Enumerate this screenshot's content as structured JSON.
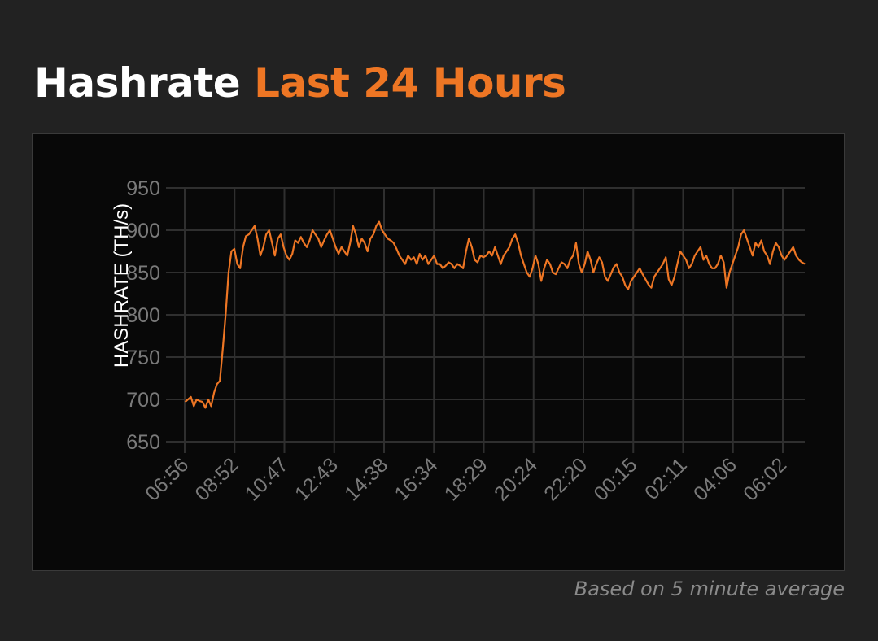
{
  "title": {
    "main": "Hashrate",
    "highlight": "Last 24 Hours"
  },
  "colors": {
    "accent": "#ee7624",
    "background": "#222222",
    "panel": "#080808",
    "grid": "#2f2f2f",
    "tick": "#7a7a7a"
  },
  "footnote": "Based on 5 minute average",
  "chart_data": {
    "type": "line",
    "ylabel": "HASHRATE (TH/s)",
    "xlabel": "",
    "ylim": [
      650,
      950
    ],
    "yticks": [
      950,
      900,
      850,
      800,
      750,
      700,
      650
    ],
    "grid": true,
    "legend": "none",
    "x_tick_labels": [
      "06:56",
      "08:52",
      "10:47",
      "12:43",
      "14:38",
      "16:34",
      "18:29",
      "20:24",
      "22:20",
      "00:15",
      "02:11",
      "04:06",
      "06:02"
    ],
    "series": [
      {
        "color": "#ee7624",
        "values": [
          697,
          700,
          703,
          692,
          700,
          698,
          697,
          690,
          700,
          692,
          708,
          718,
          722,
          760,
          800,
          850,
          875,
          878,
          860,
          855,
          880,
          893,
          895,
          900,
          905,
          890,
          870,
          880,
          895,
          900,
          885,
          870,
          890,
          895,
          880,
          870,
          865,
          872,
          888,
          885,
          892,
          885,
          880,
          888,
          900,
          895,
          890,
          880,
          888,
          895,
          900,
          890,
          880,
          872,
          880,
          875,
          870,
          885,
          905,
          895,
          880,
          890,
          885,
          875,
          890,
          895,
          905,
          910,
          900,
          895,
          890,
          888,
          885,
          878,
          870,
          865,
          860,
          870,
          865,
          868,
          860,
          872,
          865,
          870,
          860,
          865,
          870,
          860,
          860,
          855,
          858,
          862,
          860,
          855,
          860,
          858,
          855,
          875,
          890,
          880,
          865,
          862,
          870,
          868,
          870,
          875,
          870,
          880,
          870,
          860,
          870,
          875,
          880,
          890,
          895,
          885,
          870,
          860,
          850,
          845,
          855,
          870,
          860,
          840,
          855,
          865,
          860,
          850,
          848,
          855,
          862,
          860,
          855,
          865,
          870,
          885,
          860,
          850,
          860,
          875,
          865,
          850,
          860,
          868,
          862,
          845,
          840,
          848,
          856,
          860,
          850,
          845,
          835,
          830,
          840,
          845,
          850,
          855,
          848,
          842,
          836,
          832,
          845,
          850,
          855,
          860,
          868,
          842,
          835,
          845,
          860,
          875,
          870,
          865,
          855,
          860,
          870,
          875,
          880,
          865,
          870,
          860,
          855,
          855,
          860,
          870,
          862,
          832,
          850,
          860,
          870,
          880,
          895,
          900,
          890,
          880,
          870,
          885,
          880,
          888,
          875,
          870,
          860,
          875,
          885,
          880,
          870,
          865,
          870,
          875,
          880,
          870,
          865,
          862,
          860
        ]
      }
    ]
  }
}
